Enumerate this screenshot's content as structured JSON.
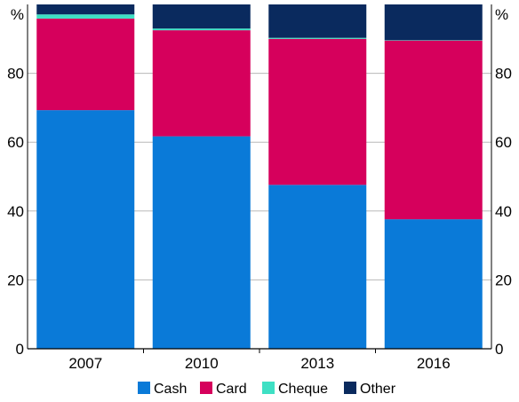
{
  "chart_data": {
    "type": "bar",
    "stacked": true,
    "categories": [
      "2007",
      "2010",
      "2013",
      "2016"
    ],
    "series": [
      {
        "name": "Cash",
        "color": "#0a7ad8",
        "values": [
          69.3,
          61.7,
          47.6,
          37.6
        ]
      },
      {
        "name": "Card",
        "color": "#d6005c",
        "values": [
          26.6,
          30.8,
          42.4,
          51.9
        ]
      },
      {
        "name": "Cheque",
        "color": "#3ee0c4",
        "values": [
          1.2,
          0.5,
          0.3,
          0.1
        ]
      },
      {
        "name": "Other",
        "color": "#0a2a5e",
        "values": [
          2.9,
          7.0,
          9.7,
          10.4
        ]
      }
    ],
    "ylim": [
      0,
      100
    ],
    "yticks": [
      0,
      20,
      40,
      60,
      80
    ],
    "yunit": "%",
    "grid": true,
    "gridColor": "#b8b8b8",
    "legend_position": "bottom"
  }
}
